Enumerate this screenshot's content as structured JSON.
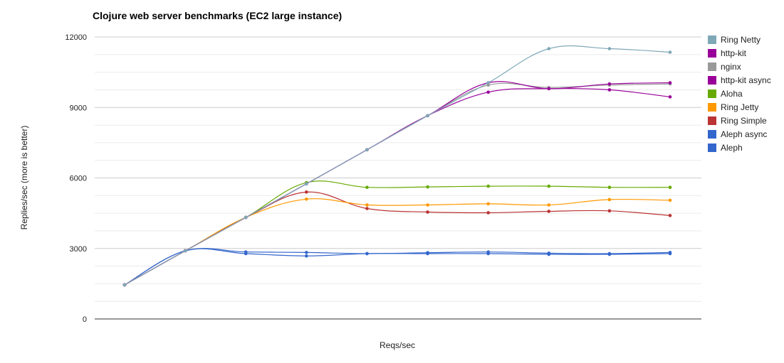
{
  "chart_data": {
    "type": "line",
    "title": "Clojure web server benchmarks (EC2 large instance)",
    "xlabel": "Reqs/sec",
    "ylabel": "Replies/sec (more is better)",
    "ylim": [
      0,
      12000
    ],
    "yticks": [
      0,
      3000,
      6000,
      9000,
      12000
    ],
    "x": [
      1,
      2,
      3,
      4,
      5,
      6,
      7,
      8,
      9,
      10
    ],
    "legend_position": "right",
    "grid": true,
    "series": [
      {
        "name": "Ring Netty",
        "color": "#7fa8b7",
        "values": [
          1450,
          2900,
          4320,
          5750,
          7200,
          8650,
          10050,
          11500,
          11500,
          11350
        ]
      },
      {
        "name": "http-kit",
        "color": "#990099",
        "values": [
          1450,
          2900,
          4320,
          5750,
          7200,
          8650,
          10050,
          9800,
          10000,
          10050
        ]
      },
      {
        "name": "nginx",
        "color": "#999999",
        "values": [
          1450,
          2900,
          4320,
          5750,
          7200,
          8650,
          9950,
          9850,
          9950,
          10000
        ]
      },
      {
        "name": "http-kit async",
        "color": "#990099",
        "values": [
          1450,
          2900,
          4320,
          5750,
          7200,
          8650,
          9650,
          9800,
          9750,
          9450
        ]
      },
      {
        "name": "Aloha",
        "color": "#66aa00",
        "values": [
          1450,
          2900,
          4320,
          5800,
          5600,
          5620,
          5650,
          5650,
          5600,
          5600
        ]
      },
      {
        "name": "Ring Jetty",
        "color": "#ff9900",
        "values": [
          1450,
          2900,
          4320,
          5100,
          4850,
          4850,
          4900,
          4850,
          5080,
          5050
        ]
      },
      {
        "name": "Ring Simple",
        "color": "#bb3333",
        "values": [
          1450,
          2900,
          4320,
          5400,
          4700,
          4550,
          4520,
          4580,
          4600,
          4400
        ]
      },
      {
        "name": "Aleph async",
        "color": "#3366cc",
        "values": [
          1450,
          2900,
          2850,
          2830,
          2780,
          2820,
          2850,
          2800,
          2780,
          2830
        ]
      },
      {
        "name": "Aleph",
        "color": "#3366cc",
        "values": [
          1450,
          2900,
          2780,
          2680,
          2780,
          2780,
          2780,
          2750,
          2750,
          2780
        ]
      }
    ]
  }
}
